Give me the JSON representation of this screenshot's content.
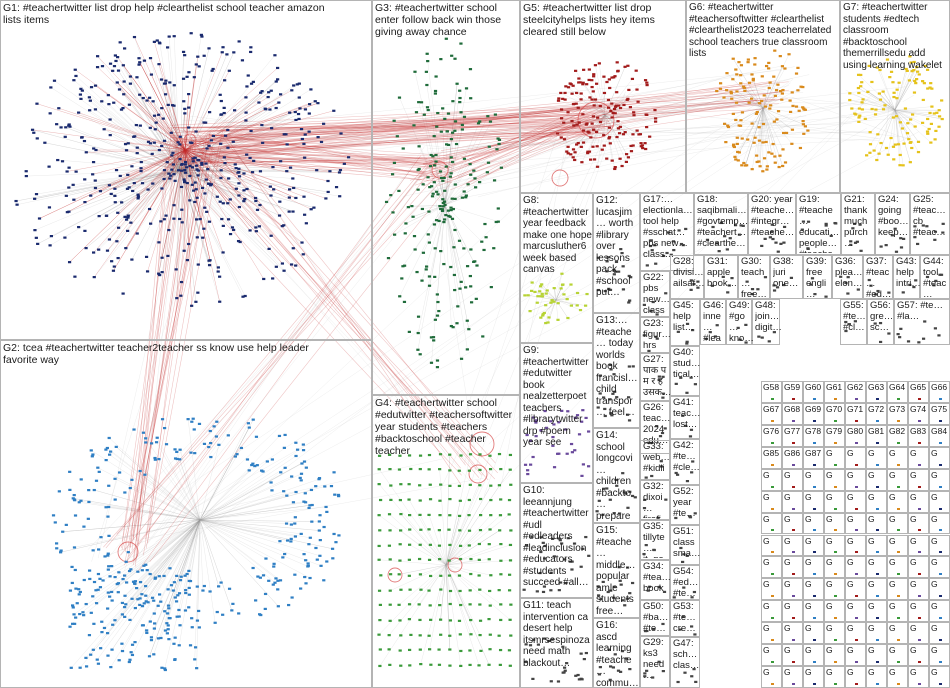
{
  "graph": {
    "groups": [
      {
        "id": "G1",
        "label": "G1: #teachertwitter list drop help #clearthelist school teacher amazon lists items",
        "color": "#1a2a6e"
      },
      {
        "id": "G2",
        "label": "G2: tcea #teachertwitter teacher2teacher ss know use help leader favorite way",
        "color": "#2f7fc4"
      },
      {
        "id": "G3",
        "label": "G3: #teachertwitter school enter follow back win those giving away chance",
        "color": "#1f6b3a"
      },
      {
        "id": "G4",
        "label": "G4: #teachertwitter school #edutwitter #teachersoftwitter year students #teachers #backtoschool #teacher teacher",
        "color": "#3a9a3a"
      },
      {
        "id": "G5",
        "label": "G5: #teachertwitter list drop steelcityhelps lists hey items cleared still below",
        "color": "#a21b1b"
      },
      {
        "id": "G6",
        "label": "G6: #teachertwitter #teachersoftwitter #clearthelist #clearthelist2023 teacherrelated school teachers true classroom lists",
        "color": "#d98a1c"
      },
      {
        "id": "G7",
        "label": "G7: #teachertwitter students #edtech classroom #backtoschool themerrillsedu add using learning wakelet",
        "color": "#e5c21a"
      },
      {
        "id": "G8",
        "label": "G8: #teachertwitter year feedback make one hope marcusluther6 week based canvas",
        "color": "#b7d334"
      },
      {
        "id": "G9",
        "label": "G9: #teachertwitter #edutwitter book nealzetterpoet teachers #librarytwitter drp #poem year see",
        "color": "#6a4a9c"
      },
      {
        "id": "G10",
        "label": "G10: leeannjung #teachertwitter #udl #edleaders #leadinclusion #educators #students succeed #all…",
        "color": "#444444"
      },
      {
        "id": "G11",
        "label": "G11: teach intervention ca desert help itsmrsespinoza need math blackout…",
        "color": "#444444"
      },
      {
        "id": "G12",
        "label": "G12: lucasjim… worth #library over lessons pack #school put…",
        "color": "#444444"
      },
      {
        "id": "G13",
        "label": "G13:… #teache… today worlds book francisl… child transpor… feel…",
        "color": "#444444"
      },
      {
        "id": "G14",
        "label": "G14: school longcovi… children #backto… prepare families cohort…",
        "color": "#444444"
      },
      {
        "id": "G15",
        "label": "G15: #teache… middle… popular amle students free…",
        "color": "#444444"
      },
      {
        "id": "G16",
        "label": "G16: ascd learning #teache… commu…",
        "color": "#444444"
      },
      {
        "id": "G17",
        "label": "G17:… electionla… tool help #sschat… pbs new… class…",
        "color": "#444444"
      },
      {
        "id": "G18",
        "label": "G18: saqibmali… #govtemp… #teachert… #clearthe…",
        "color": "#444444"
      },
      {
        "id": "G19",
        "label": "G19: #teache… educati… people… #teache…",
        "color": "#444444"
      },
      {
        "id": "G20",
        "label": "G20: year #teache… #integr… #teache…",
        "color": "#444444"
      },
      {
        "id": "G21",
        "label": "G21: thank much purch…",
        "color": "#444444"
      },
      {
        "id": "G22",
        "label": "G22: pbs new… class…",
        "color": "#444444"
      },
      {
        "id": "G23",
        "label": "G23: figur… hrs seco…",
        "color": "#444444"
      },
      {
        "id": "G24",
        "label": "G24: going #boo… keep…",
        "color": "#444444"
      },
      {
        "id": "G25",
        "label": "G25: #teac… cb #teac…",
        "color": "#444444"
      },
      {
        "id": "G26",
        "label": "G26: teac… 2024 edu…",
        "color": "#444444"
      },
      {
        "id": "G27",
        "label": "G27: पाक प म र ह उसक…",
        "color": "#444444"
      },
      {
        "id": "G28",
        "label": "G28: divisi… ailsaf…",
        "color": "#444444"
      },
      {
        "id": "G29",
        "label": "G29: ks3 need…",
        "color": "#444444"
      },
      {
        "id": "G30",
        "label": "G30: teach… free…",
        "color": "#444444"
      },
      {
        "id": "G31",
        "label": "G31: apple book…",
        "color": "#444444"
      },
      {
        "id": "G32",
        "label": "G32: dixoi… firefi…",
        "color": "#444444"
      },
      {
        "id": "G33",
        "label": "G33: web… #kidli…",
        "color": "#444444"
      },
      {
        "id": "G34",
        "label": "G34: #tea… book…",
        "color": "#444444"
      },
      {
        "id": "G35",
        "label": "G35: tillyte… jt_ge…",
        "color": "#444444"
      },
      {
        "id": "G36",
        "label": "G36: plea… elon…",
        "color": "#444444"
      },
      {
        "id": "G37",
        "label": "G37: #teac… #ed…",
        "color": "#444444"
      },
      {
        "id": "G38",
        "label": "G38: juri one…",
        "color": "#444444"
      },
      {
        "id": "G39",
        "label": "G39: free engli…",
        "color": "#444444"
      },
      {
        "id": "G40",
        "label": "G40: stud… tical…",
        "color": "#444444"
      },
      {
        "id": "G41",
        "label": "G41: teac… lost…",
        "color": "#444444"
      },
      {
        "id": "G42",
        "label": "G42: #te… #cle…",
        "color": "#444444"
      },
      {
        "id": "G43",
        "label": "G43: help intri…",
        "color": "#444444"
      },
      {
        "id": "G44",
        "label": "G44: tool #teac…",
        "color": "#444444"
      },
      {
        "id": "G45",
        "label": "G45: help list…",
        "color": "#444444"
      },
      {
        "id": "G46",
        "label": "G46: inne… #lea…",
        "color": "#444444"
      },
      {
        "id": "G47",
        "label": "G47: sch… clas…",
        "color": "#444444"
      },
      {
        "id": "G48",
        "label": "G48: join… digit…",
        "color": "#444444"
      },
      {
        "id": "G49",
        "label": "G49: #go… kno…",
        "color": "#444444"
      },
      {
        "id": "G50",
        "label": "G50: #ba… #te…",
        "color": "#444444"
      },
      {
        "id": "G51",
        "label": "G51: class sma…",
        "color": "#444444"
      },
      {
        "id": "G52",
        "label": "G52: year #te…",
        "color": "#444444"
      },
      {
        "id": "G53",
        "label": "G53: #te… cre…",
        "color": "#444444"
      },
      {
        "id": "G54",
        "label": "G54: #ed… #te…",
        "color": "#444444"
      },
      {
        "id": "G55",
        "label": "G55: #te… #cl…",
        "color": "#444444"
      },
      {
        "id": "G56",
        "label": "G56: gre… sc…",
        "color": "#444444"
      },
      {
        "id": "G57",
        "label": "G57: #te… #la…",
        "color": "#444444"
      }
    ],
    "small_groups": [
      "G58",
      "G59",
      "G60",
      "G61",
      "G62",
      "G63",
      "G64",
      "G65",
      "G66",
      "G67",
      "G68",
      "G69",
      "G70",
      "G71",
      "G72",
      "G73",
      "G74",
      "G75",
      "G76",
      "G77",
      "G78",
      "G79",
      "G80",
      "G81",
      "G82",
      "G83",
      "G84",
      "G85",
      "G86",
      "G87"
    ],
    "colors": {
      "box_border": "#b4b4b4",
      "edge_gray": "#9a9a9a",
      "edge_red": "#c42b2b",
      "halo_red": "#d64545"
    }
  }
}
